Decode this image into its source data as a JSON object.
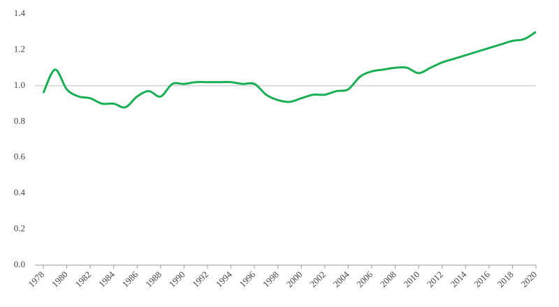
{
  "chart_data": {
    "type": "line",
    "x": [
      1978,
      1979,
      1980,
      1981,
      1982,
      1983,
      1984,
      1985,
      1986,
      1987,
      1988,
      1989,
      1990,
      1991,
      1992,
      1993,
      1994,
      1995,
      1996,
      1997,
      1998,
      1999,
      2000,
      2001,
      2002,
      2003,
      2004,
      2005,
      2006,
      2007,
      2008,
      2009,
      2010,
      2011,
      2012,
      2013,
      2014,
      2015,
      2016,
      2017,
      2018,
      2019,
      2020
    ],
    "series": [
      {
        "color": "#1aaf54",
        "values": [
          0.96,
          1.09,
          0.98,
          0.94,
          0.93,
          0.9,
          0.9,
          0.88,
          0.94,
          0.97,
          0.94,
          1.01,
          1.01,
          1.02,
          1.02,
          1.02,
          1.02,
          1.01,
          1.01,
          0.95,
          0.92,
          0.91,
          0.93,
          0.95,
          0.95,
          0.97,
          0.98,
          1.05,
          1.08,
          1.09,
          1.1,
          1.1,
          1.07,
          1.1,
          1.13,
          1.15,
          1.17,
          1.19,
          1.21,
          1.23,
          1.25,
          1.26,
          1.3
        ]
      }
    ],
    "xlim": [
      1978,
      2020
    ],
    "xticks": [
      1978,
      1980,
      1982,
      1984,
      1986,
      1988,
      1990,
      1992,
      1994,
      1996,
      1998,
      2000,
      2002,
      2004,
      2006,
      2008,
      2010,
      2012,
      2014,
      2016,
      2018,
      2020
    ],
    "ylim": [
      0,
      1.4
    ],
    "yticks": [
      {
        "value": 0,
        "label": "0.0"
      },
      0.2,
      0.4,
      0.6,
      0.8,
      {
        "value": 1,
        "label": "1.0"
      },
      1.2,
      1.4
    ],
    "reference_line": {
      "value": 1,
      "color": "#bbbbbb"
    }
  }
}
